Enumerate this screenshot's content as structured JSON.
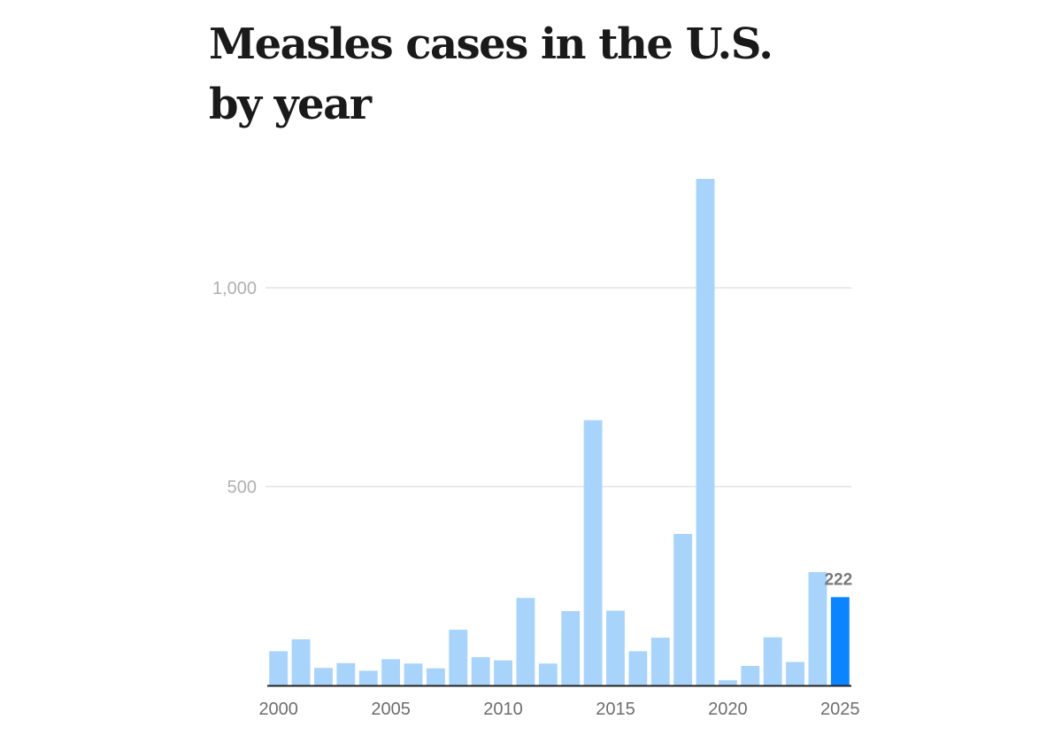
{
  "chart_data": {
    "type": "bar",
    "title": "Measles cases in the U.S. by year",
    "xlabel": "",
    "ylabel": "",
    "categories": [
      2000,
      2001,
      2002,
      2003,
      2004,
      2005,
      2006,
      2007,
      2008,
      2009,
      2010,
      2011,
      2012,
      2013,
      2014,
      2015,
      2016,
      2017,
      2018,
      2019,
      2020,
      2021,
      2022,
      2023,
      2024,
      2025
    ],
    "values": [
      86,
      116,
      44,
      56,
      37,
      66,
      55,
      43,
      140,
      71,
      63,
      220,
      55,
      187,
      667,
      188,
      86,
      120,
      381,
      1274,
      13,
      49,
      121,
      59,
      285,
      222
    ],
    "ylim": [
      0,
      1300
    ],
    "yticks": [
      500,
      1000
    ],
    "ytick_labels": [
      "500",
      "1,000"
    ],
    "xticks": [
      2000,
      2005,
      2010,
      2015,
      2020,
      2025
    ],
    "xtick_labels": [
      "2000",
      "2005",
      "2010",
      "2015",
      "2020",
      "2025"
    ],
    "highlight": {
      "category": 2025,
      "label": "222"
    },
    "grid": true,
    "legend": "none",
    "colors": {
      "bar": "#a8d4fc",
      "highlight": "#0a84ff",
      "gridline": "#e3e3e3",
      "baseline": "#222222"
    }
  }
}
